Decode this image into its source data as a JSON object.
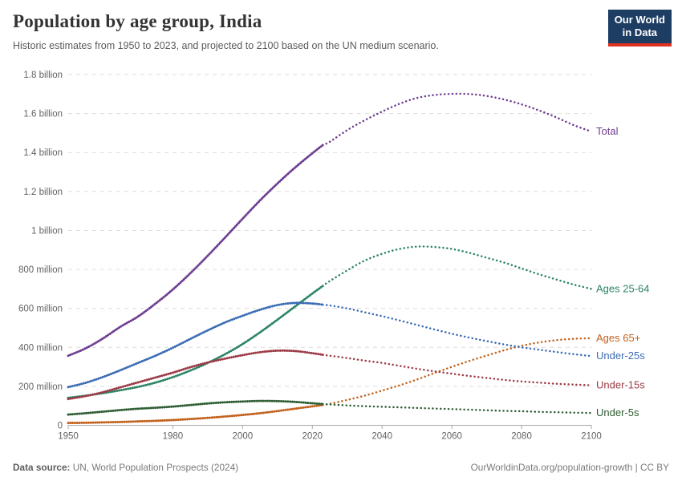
{
  "header": {
    "title": "Population by age group, India",
    "subtitle": "Historic estimates from 1950 to 2023, and projected to 2100 based on the UN medium scenario.",
    "logo_line1": "Our World",
    "logo_line2": "in Data"
  },
  "footer": {
    "datasource_label": "Data source:",
    "datasource_value": " UN, World Population Prospects (2024)",
    "link": "OurWorldinData.org/population-growth | CC BY"
  },
  "chart_data": {
    "type": "line",
    "title": "Population by age group, India",
    "unit": "people (millions)",
    "historic_end_year": 2023,
    "x_range": [
      1950,
      2100
    ],
    "ylim_millions": [
      0,
      1800
    ],
    "grid": "horizontal-dashed",
    "legend_position": "right-edge-labels",
    "xticks": [
      1950,
      1980,
      2000,
      2020,
      2040,
      2060,
      2080,
      2100
    ],
    "yticks": [
      {
        "value": 0,
        "label": "0"
      },
      {
        "value": 200,
        "label": "200 million"
      },
      {
        "value": 400,
        "label": "400 million"
      },
      {
        "value": 600,
        "label": "600 million"
      },
      {
        "value": 800,
        "label": "800 million"
      },
      {
        "value": 1000,
        "label": "1 billion"
      },
      {
        "value": 1200,
        "label": "1.2 billion"
      },
      {
        "value": 1400,
        "label": "1.4 billion"
      },
      {
        "value": 1600,
        "label": "1.6 billion"
      },
      {
        "value": 1800,
        "label": "1.8 billion"
      }
    ],
    "years": [
      1950,
      1955,
      1960,
      1965,
      1970,
      1975,
      1980,
      1985,
      1990,
      1995,
      2000,
      2005,
      2010,
      2015,
      2020,
      2023,
      2025,
      2030,
      2035,
      2040,
      2045,
      2050,
      2055,
      2060,
      2065,
      2070,
      2075,
      2080,
      2085,
      2090,
      2095,
      2100
    ],
    "series": [
      {
        "name": "Total",
        "color": "#6d3e91",
        "values_millions": [
          357,
          395,
          446,
          506,
          558,
          624,
          697,
          780,
          870,
          964,
          1060,
          1154,
          1241,
          1322,
          1396,
          1438,
          1455,
          1515,
          1565,
          1610,
          1650,
          1680,
          1695,
          1701,
          1700,
          1690,
          1672,
          1647,
          1616,
          1580,
          1540,
          1508
        ]
      },
      {
        "name": "Ages 25-64",
        "color": "#2c8465",
        "values_millions": [
          141,
          152,
          165,
          180,
          197,
          219,
          247,
          281,
          320,
          365,
          417,
          477,
          542,
          609,
          676,
          715,
          740,
          795,
          845,
          880,
          905,
          917,
          915,
          905,
          885,
          860,
          835,
          805,
          775,
          748,
          722,
          700
        ]
      },
      {
        "name": "Ages 65+",
        "color": "#c2611c",
        "values_millions": [
          12,
          13,
          15,
          17,
          20,
          23,
          27,
          32,
          38,
          45,
          53,
          62,
          73,
          85,
          97,
          104,
          110,
          130,
          152,
          178,
          205,
          235,
          268,
          300,
          330,
          358,
          385,
          408,
          425,
          437,
          444,
          447
        ]
      },
      {
        "name": "Under-25s",
        "color": "#3b6cb4",
        "values_millions": [
          196,
          218,
          248,
          283,
          320,
          357,
          398,
          443,
          487,
          528,
          562,
          593,
          617,
          628,
          625,
          619,
          615,
          600,
          580,
          560,
          538,
          515,
          492,
          470,
          450,
          432,
          415,
          400,
          388,
          376,
          365,
          355
        ]
      },
      {
        "name": "Under-15s",
        "color": "#9c3a46",
        "values_millions": [
          135,
          150,
          170,
          195,
          220,
          245,
          270,
          298,
          322,
          342,
          360,
          375,
          383,
          381,
          370,
          362,
          357,
          345,
          332,
          320,
          305,
          290,
          277,
          265,
          253,
          243,
          233,
          225,
          219,
          213,
          209,
          205
        ]
      },
      {
        "name": "Under-5s",
        "color": "#2f5e34",
        "values_millions": [
          55,
          62,
          70,
          78,
          85,
          90,
          96,
          104,
          112,
          118,
          122,
          125,
          124,
          120,
          113,
          109,
          107,
          102,
          98,
          95,
          92,
          89,
          86,
          83,
          80,
          77,
          74,
          72,
          69,
          67,
          65,
          63
        ]
      }
    ],
    "colors": {
      "grid": "#dcdcdc",
      "axis": "#a8a8a8",
      "tick_label": "#636363",
      "logo_bg": "#1d3d63",
      "logo_red": "#e0321f"
    }
  }
}
